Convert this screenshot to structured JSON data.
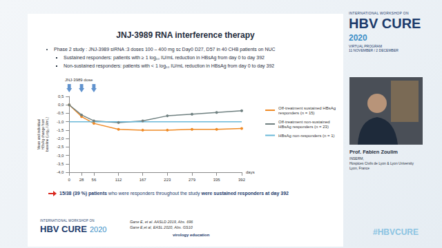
{
  "slide": {
    "title": "JNJ-3989 RNA interference therapy",
    "bullets": [
      {
        "text": "Phase 2 study : JNJ-3989 siRNA :3 doses 100 – 400 mg sc Day0 D27, D57 in 40 CHB patients on NUC",
        "sub": [
          "Sustained responders: patients with ≥ 1 log₁₀ IU/mL reduction in HBsAg from day 0 to day 392",
          "Non-sustained responders: patients with < 1 log₁₀ IU/mL reduction in HBsAg from day 0 to day 392"
        ]
      }
    ],
    "conclusion": [
      {
        "text": "15/38 (39 %) patients",
        "bold": true
      },
      {
        "text": " who were responders throughout the study ",
        "bold": false
      },
      {
        "text": "were sustained responders at day 392",
        "bold": true
      }
    ],
    "references": [
      "Gane E, et al. AASLD 2019, Abs. 696",
      "Gane E,et al, EASL 2020, Abs. GS10"
    ],
    "footer_logo": [
      "INTERNATIONAL WORKSHOP ON",
      "HBV CURE",
      "2020"
    ],
    "footer_brand": "virology education",
    "header_logo": [
      "INTERNATIONAL WORKSHOP ON",
      "HBV CURE",
      "2020",
      "VIRTUAL PROGRAM",
      "11 NOVEMBER / 2 DECEMBER"
    ],
    "speaker": {
      "name": "Prof. Fabien Zoulim",
      "affiliation": [
        "INSERM,",
        "Hospices Civils de Lyon & Lyon University",
        "Lyon, France"
      ]
    },
    "hashtag": "#HBVCURE"
  },
  "chart_data": {
    "type": "line",
    "x_label": "days",
    "y_label": "Mean and individual HBsAg change from baseline (Log₁₀ IU/mL)",
    "x": [
      0,
      28,
      56,
      112,
      167,
      223,
      279,
      335,
      392
    ],
    "xlim": [
      0,
      392
    ],
    "xticks": [
      0,
      28,
      56,
      112,
      167,
      223,
      279,
      335,
      392
    ],
    "ylim": [
      -4,
      0.5
    ],
    "yticks": [
      {
        "value": -4,
        "label": "-4,0"
      },
      {
        "value": -3.5,
        "label": "-3,5"
      },
      {
        "value": -3,
        "label": "-3,0"
      },
      {
        "value": -2.5,
        "label": "-2,5"
      },
      {
        "value": -2,
        "label": "-2,0"
      },
      {
        "value": -1.5,
        "label": "-1,5"
      },
      {
        "value": -1,
        "label": "-1,0"
      },
      {
        "value": -0.5,
        "label": "-0,5"
      },
      {
        "value": 0,
        "label": "0,0"
      },
      {
        "value": 0.5,
        "label": "0,5"
      }
    ],
    "grid": false,
    "legend": "right",
    "series": [
      {
        "name": "Off-treatment sustained HBsAg responders (n = 15)",
        "color": "#f08a24",
        "marker": "circle",
        "line_style": "solid",
        "values": [
          0,
          -0.7,
          -1.1,
          -1.45,
          -1.5,
          -1.5,
          -1.45,
          -1.45,
          -1.4
        ]
      },
      {
        "name": "Off-treatment non-sustained HBsAg responders (n = 23)",
        "color": "#6f8080",
        "marker": "circle",
        "line_style": "solid",
        "values": [
          0,
          -0.6,
          -0.95,
          -1.05,
          -0.95,
          -0.65,
          -0.55,
          -0.45,
          -0.35
        ]
      },
      {
        "name": "HBsAg non-responders (n = 1)",
        "color": "#6ab8d8",
        "marker": "none",
        "line_style": "solid",
        "values": [
          -1,
          -1,
          -1,
          -1,
          -1,
          -1,
          -1,
          -1,
          -1
        ]
      }
    ],
    "dose": {
      "label": "JNJ-3989 dose",
      "days": [
        0,
        28,
        56
      ],
      "color": "#3a78c2"
    }
  }
}
